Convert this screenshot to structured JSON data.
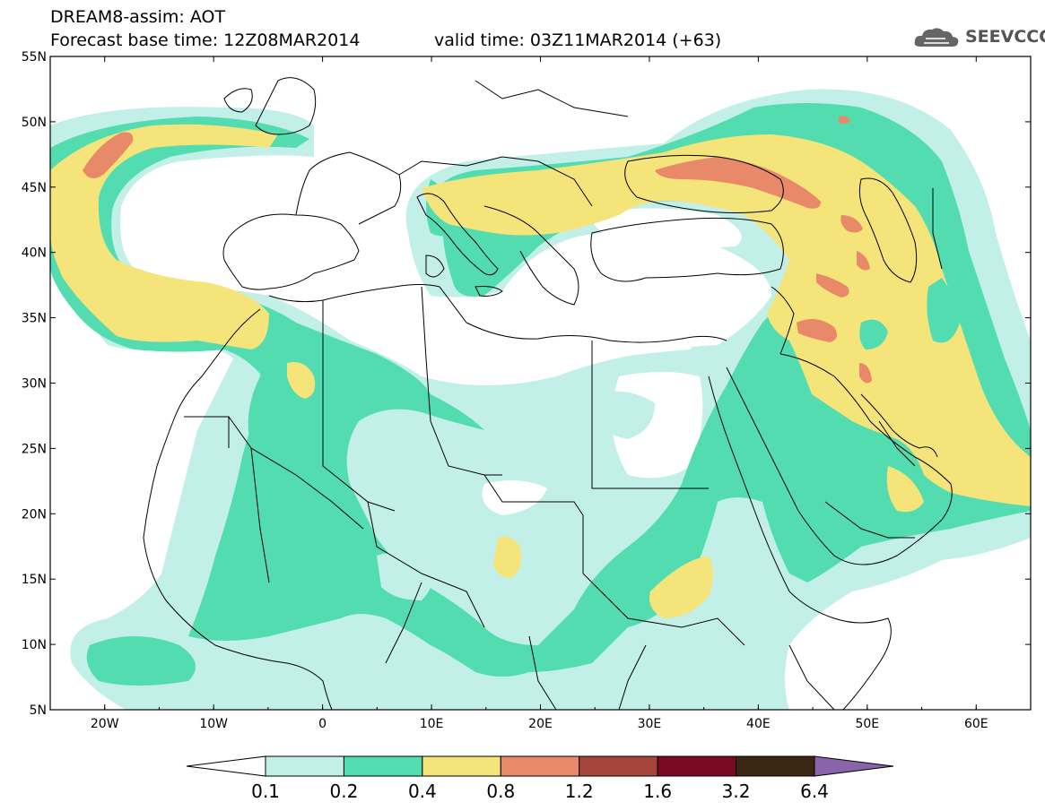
{
  "header": {
    "line1": "DREAM8-assim: AOT",
    "line2": "Forecast base time: 12Z08MAR2014",
    "valid": "valid time: 03Z11MAR2014 (+63)"
  },
  "logo": {
    "text": "SEEVCCC",
    "icon": "cloud-icon"
  },
  "axes": {
    "lon_range": [
      -25,
      65
    ],
    "lat_range": [
      5,
      55
    ],
    "x_ticks": [
      "20W",
      "10W",
      "0",
      "10E",
      "20E",
      "30E",
      "40E",
      "50E",
      "60E"
    ],
    "x_tick_values": [
      -20,
      -10,
      0,
      10,
      20,
      30,
      40,
      50,
      60
    ],
    "y_ticks": [
      "5N",
      "10N",
      "15N",
      "20N",
      "25N",
      "30N",
      "35N",
      "40N",
      "45N",
      "50N",
      "55N"
    ],
    "y_tick_values": [
      5,
      10,
      15,
      20,
      25,
      30,
      35,
      40,
      45,
      50,
      55
    ]
  },
  "colorbar": {
    "labels": [
      "0.1",
      "0.2",
      "0.4",
      "0.8",
      "1.2",
      "1.6",
      "3.2",
      "6.4"
    ],
    "colors": [
      "#ffffff",
      "#c2f0e8",
      "#52dcb0",
      "#f5e47a",
      "#e8896a",
      "#a6453c",
      "#7a0a22",
      "#3b2614",
      "#8a64aa"
    ]
  },
  "fields": [
    {
      "level": 1,
      "color": "#c2f0e8"
    },
    {
      "level": 2,
      "color": "#52dcb0"
    },
    {
      "level": 3,
      "color": "#f5e47a"
    },
    {
      "level": 4,
      "color": "#e8896a"
    }
  ]
}
